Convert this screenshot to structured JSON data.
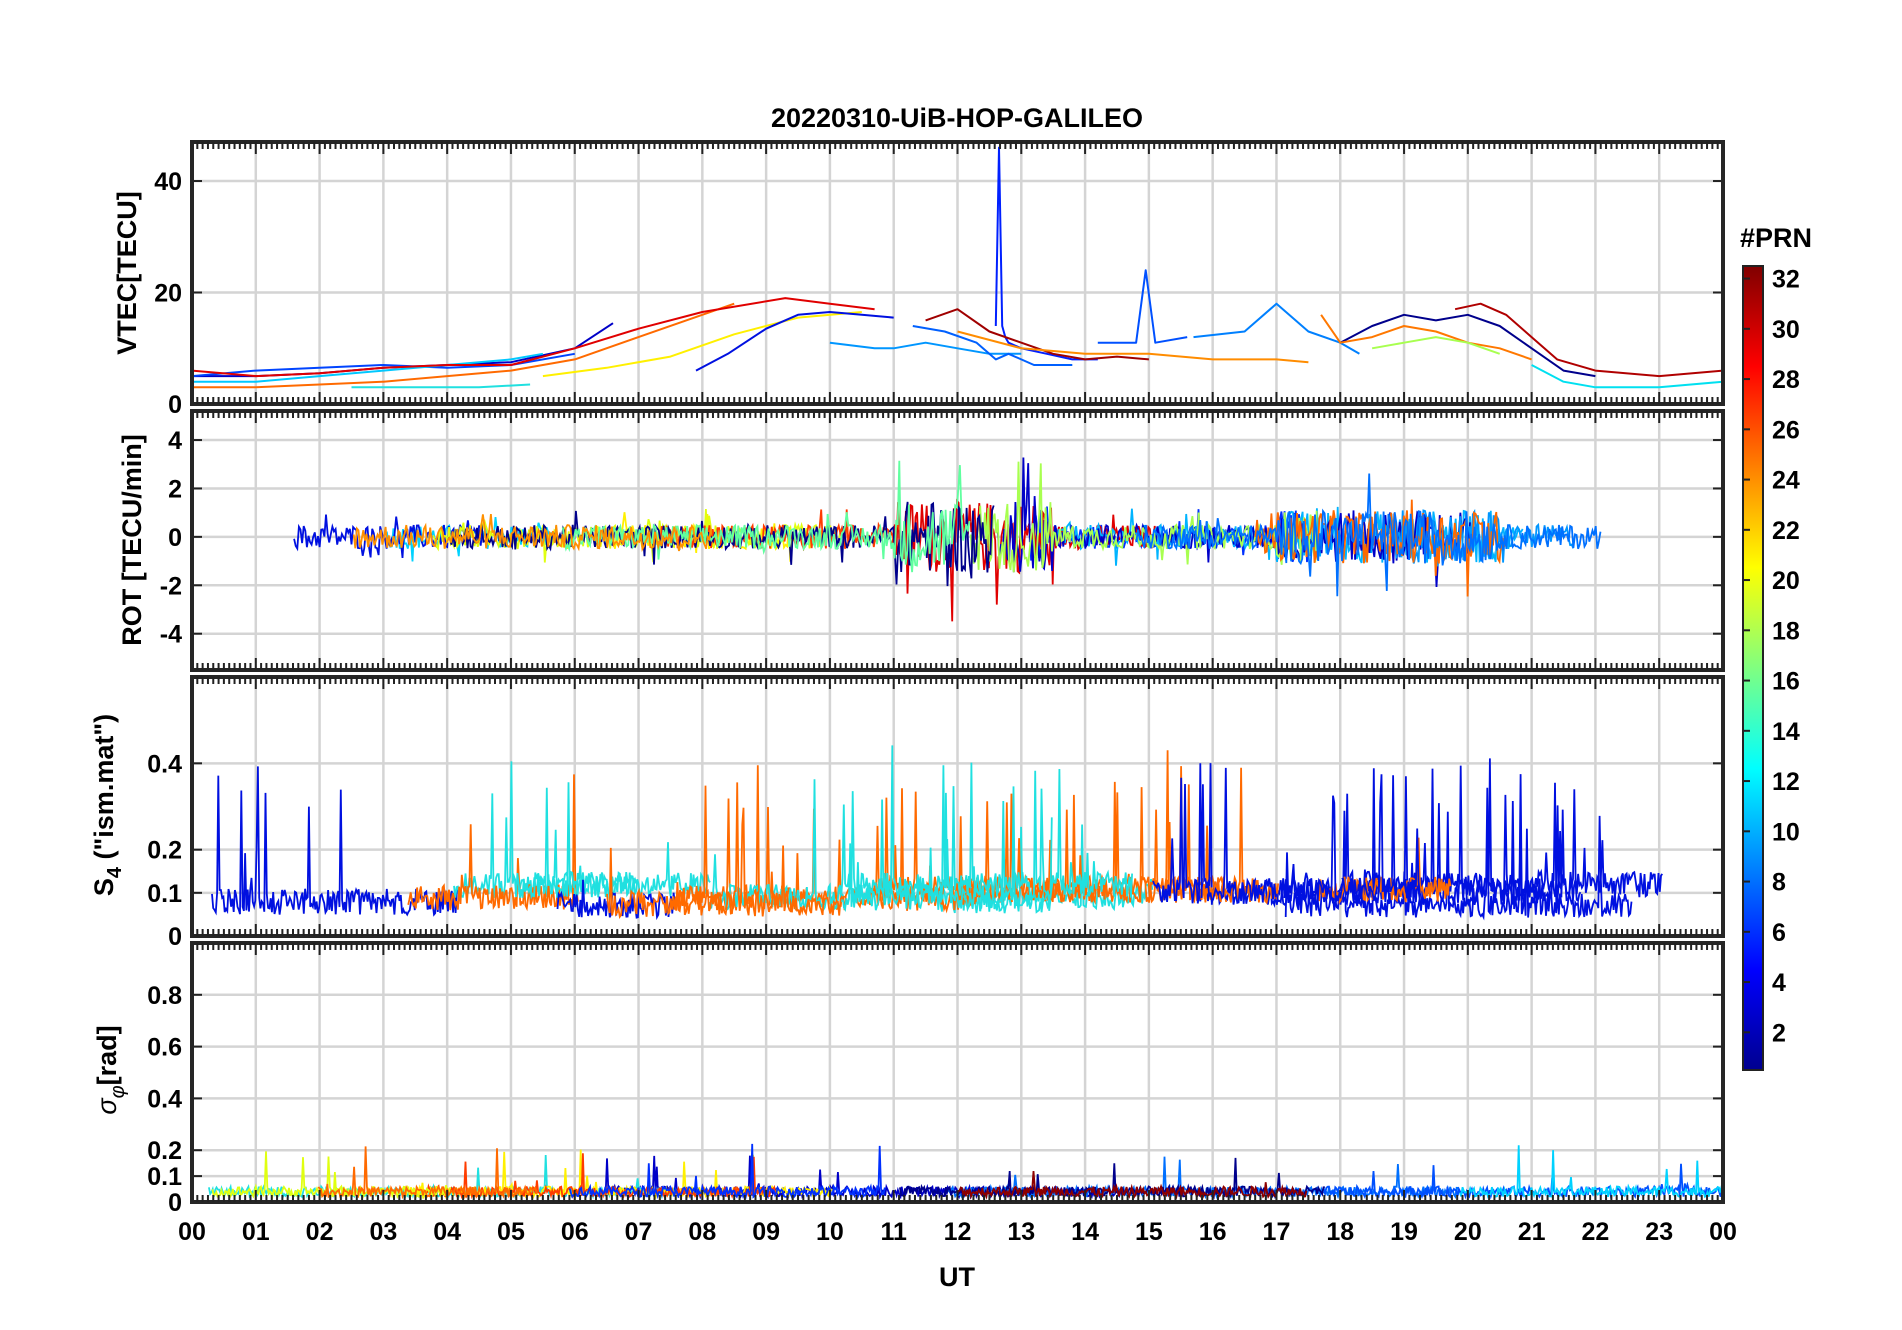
{
  "chart_data": {
    "type": "line",
    "title": "20220310-UiB-HOP-GALILEO",
    "xlabel": "UT",
    "x_tick_labels": [
      "00",
      "01",
      "02",
      "03",
      "04",
      "05",
      "06",
      "07",
      "08",
      "09",
      "10",
      "11",
      "12",
      "13",
      "14",
      "15",
      "16",
      "17",
      "18",
      "19",
      "20",
      "21",
      "22",
      "23",
      "00"
    ],
    "xlim_hours": [
      0,
      24
    ],
    "grid": true,
    "colorbar": {
      "title": "#PRN",
      "range": [
        1,
        32
      ],
      "tick_labels": [
        "2",
        "4",
        "6",
        "8",
        "10",
        "12",
        "14",
        "16",
        "18",
        "20",
        "22",
        "24",
        "26",
        "28",
        "30",
        "32"
      ],
      "colormap": "jet"
    },
    "panels": [
      {
        "id": "vtec",
        "ylabel": "VTEC[TECU]",
        "ylim": [
          0,
          47
        ],
        "yticks": [
          0,
          20,
          40
        ],
        "ytick_labels": [
          "0",
          "20",
          "40"
        ],
        "series": [
          {
            "prn": 2,
            "color": "#0000C8",
            "x": [
              0,
              1,
              2,
              3,
              4,
              5,
              6,
              6.6
            ],
            "y": [
              5,
              5,
              5.5,
              6.5,
              7,
              7.5,
              10,
              14.5
            ]
          },
          {
            "prn": 5,
            "color": "#0044FF",
            "x": [
              0,
              1,
              2,
              3,
              4,
              5,
              6
            ],
            "y": [
              5,
              6,
              6.5,
              7,
              6.5,
              7,
              9
            ]
          },
          {
            "prn": 12,
            "color": "#00C8FF",
            "x": [
              0,
              1,
              2,
              3,
              4,
              5,
              5.5
            ],
            "y": [
              4,
              4,
              5,
              6,
              7,
              8,
              9
            ]
          },
          {
            "prn": 14,
            "color": "#20E0E0",
            "x": [
              2.5,
              3.5,
              4.5,
              5.3
            ],
            "y": [
              3,
              3,
              3,
              3.5
            ]
          },
          {
            "prn": 20,
            "color": "#FFF000",
            "x": [
              5.5,
              6.5,
              7.5,
              8.5,
              9.5,
              10.5
            ],
            "y": [
              5,
              6.5,
              8.5,
              12.5,
              15.5,
              16.5
            ]
          },
          {
            "prn": 26,
            "color": "#FF6A00",
            "x": [
              0,
              1,
              2,
              3,
              4,
              5,
              6,
              7,
              8.5
            ],
            "y": [
              3,
              3,
              3.5,
              4,
              5,
              6,
              8,
              12,
              18
            ]
          },
          {
            "prn": 29,
            "color": "#E00000",
            "x": [
              0,
              1,
              2,
              3,
              4,
              5,
              6,
              7,
              8,
              9.3,
              10,
              10.7
            ],
            "y": [
              6,
              5,
              5.5,
              6.5,
              7,
              7,
              10,
              13.5,
              16.5,
              19,
              18,
              17
            ]
          },
          {
            "prn": 3,
            "color": "#0010E0",
            "x": [
              7.9,
              8.4,
              9,
              9.5,
              10,
              10.5,
              11
            ],
            "y": [
              6,
              9,
              13.5,
              16,
              16.5,
              16,
              15.5
            ]
          },
          {
            "prn": 10,
            "color": "#0096FF",
            "x": [
              10,
              10.7,
              11,
              11.5,
              12,
              12.5,
              13
            ],
            "y": [
              11,
              10,
              10,
              11,
              10,
              9,
              9
            ]
          },
          {
            "prn": 8,
            "color": "#0060FF",
            "x": [
              11.3,
              11.8,
              12.3,
              12.6,
              12.8,
              13.2,
              13.8
            ],
            "y": [
              14,
              13,
              11,
              8,
              9,
              7,
              7
            ]
          },
          {
            "prn": 4,
            "color": "#0020FF",
            "x": [
              12.6,
              12.65,
              12.7,
              12.75,
              12.8,
              13.0,
              13.4,
              13.8,
              14.2
            ],
            "y": [
              14,
              46,
              14,
              12,
              11,
              10,
              9,
              8,
              8
            ]
          },
          {
            "prn": 31,
            "color": "#A00000",
            "x": [
              11.5,
              12,
              12.5,
              13,
              13.5,
              14,
              14.5,
              15
            ],
            "y": [
              15,
              17,
              13,
              11,
              9,
              8,
              8.5,
              8
            ]
          },
          {
            "prn": 24,
            "color": "#FF8C00",
            "x": [
              12,
              13,
              14,
              15,
              16,
              17,
              17.5
            ],
            "y": [
              13,
              10,
              9,
              9,
              8,
              8,
              7.5
            ]
          },
          {
            "prn": 9,
            "color": "#0080FF",
            "x": [
              15.7,
              16.5,
              17,
              17.5,
              18,
              18.3
            ],
            "y": [
              12,
              13,
              18,
              13,
              11,
              9
            ]
          },
          {
            "prn": 7,
            "color": "#0050FF",
            "x": [
              14.2,
              14.8,
              14.95,
              15.1,
              15.6
            ],
            "y": [
              11,
              11,
              24,
              11,
              12
            ]
          },
          {
            "prn": 1,
            "color": "#00008C",
            "x": [
              18,
              18.5,
              19,
              19.5,
              20,
              20.5,
              21,
              21.5,
              22
            ],
            "y": [
              11,
              14,
              16,
              15,
              16,
              14,
              10,
              6,
              5
            ]
          },
          {
            "prn": 30,
            "color": "#B00000",
            "x": [
              19.8,
              20.2,
              20.6,
              21,
              21.4,
              22,
              23,
              24
            ],
            "y": [
              17,
              18,
              16,
              12,
              8,
              6,
              5,
              6
            ]
          },
          {
            "prn": 25,
            "color": "#FF7800",
            "x": [
              17.7,
              18,
              18.5,
              19,
              19.5,
              20,
              20.5,
              21
            ],
            "y": [
              16,
              11,
              12,
              14,
              13,
              11,
              10,
              8
            ]
          },
          {
            "prn": 18,
            "color": "#A8FF50",
            "x": [
              18.5,
              19,
              19.5,
              20,
              20.5
            ],
            "y": [
              10,
              11,
              12,
              11,
              9
            ]
          },
          {
            "prn": 13,
            "color": "#00E0F0",
            "x": [
              21,
              21.5,
              22,
              23,
              24
            ],
            "y": [
              7,
              4,
              3,
              3,
              4
            ]
          }
        ]
      },
      {
        "id": "rot",
        "ylabel": "ROT [TECU/min]",
        "ylim": [
          -5.5,
          5.2
        ],
        "yticks": [
          -4,
          -2,
          0,
          2,
          4
        ],
        "ytick_labels": [
          "-4",
          "-2",
          "0",
          "2",
          "4"
        ]
      },
      {
        "id": "s4",
        "ylabel": "S4 (\"ism.mat\")",
        "ylabel_base": "S",
        "ylabel_sub": "4",
        "ylabel_rest": " (\"ism.mat\")",
        "ylim": [
          0,
          0.6
        ],
        "yticks": [
          0,
          0.1,
          0.2,
          0.4
        ],
        "ytick_labels": [
          "0",
          "0.1",
          "0.2",
          "0.4"
        ]
      },
      {
        "id": "sigma",
        "ylabel": "σφ[rad]",
        "ylabel_base": "σ",
        "ylabel_sub": "φ",
        "ylabel_rest": "[rad]",
        "ylim": [
          0,
          1
        ],
        "yticks": [
          0,
          0.1,
          0.2,
          0.4,
          0.6,
          0.8
        ],
        "ytick_labels": [
          "0",
          "0.1",
          "0.2",
          "0.4",
          "0.6",
          "0.8"
        ]
      }
    ]
  }
}
